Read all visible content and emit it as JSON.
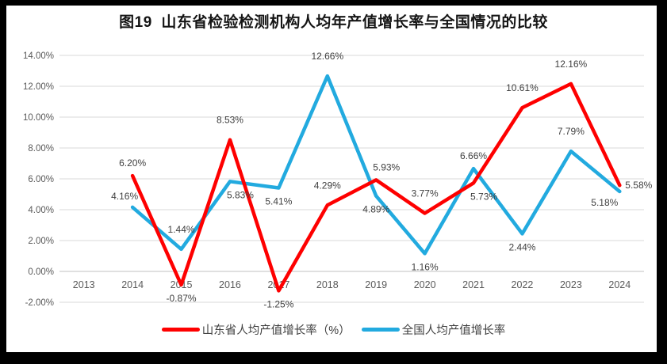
{
  "chart_data": {
    "type": "line",
    "title": "图19  山东省检验检测机构人均年产值增长率与全国情况的比较",
    "categories": [
      "2013",
      "2014",
      "2015",
      "2016",
      "2017",
      "2018",
      "2019",
      "2020",
      "2021",
      "2022",
      "2023",
      "2024"
    ],
    "series": [
      {
        "id": "shandong",
        "name": "山东省人均产值增长率（%）",
        "color": "#fe0000",
        "values": [
          null,
          6.2,
          -0.87,
          8.53,
          -1.25,
          4.29,
          5.93,
          3.77,
          5.73,
          10.61,
          12.16,
          5.58
        ],
        "labels": [
          "",
          "6.20%",
          "-0.87%",
          "8.53%",
          "-1.25%",
          "4.29%",
          "5.93%",
          "3.77%",
          "5.73%",
          "10.61%",
          "12.16%",
          "5.58%"
        ],
        "label_positions": [
          "",
          "above",
          "below",
          "above-far",
          "below",
          "above-far",
          "above-right",
          "above-far",
          "below-right",
          "above-far",
          "above-far",
          "right"
        ]
      },
      {
        "id": "national",
        "name": "全国人均产值增长率",
        "color": "#22aadf",
        "values": [
          null,
          4.16,
          1.44,
          5.83,
          5.41,
          12.66,
          4.89,
          1.16,
          6.66,
          2.44,
          7.79,
          5.18
        ],
        "labels": [
          "",
          "4.16%",
          "1.44%",
          "5.83%",
          "5.41%",
          "12.66%",
          "4.89%",
          "1.16%",
          "6.66%",
          "2.44%",
          "7.79%",
          "5.18%"
        ],
        "label_positions": [
          "",
          "above-left",
          "above-far",
          "below-right",
          "below",
          "above-far",
          "below",
          "below",
          "above",
          "below",
          "above-far",
          "below-left"
        ]
      }
    ],
    "y_axis": {
      "min": -2,
      "max": 14,
      "step": 2,
      "tick_labels": [
        "-2.00%",
        "0.00%",
        "2.00%",
        "4.00%",
        "6.00%",
        "8.00%",
        "10.00%",
        "12.00%",
        "14.00%"
      ]
    },
    "grid": true,
    "legend_position": "bottom",
    "colors": {
      "frame": "#000000",
      "background": "#ffffff",
      "gridline": "#d9d9d9",
      "zero_axis": "#c0c0c0",
      "tick_text": "#595959",
      "data_label_text": "#3f3f3f"
    }
  }
}
